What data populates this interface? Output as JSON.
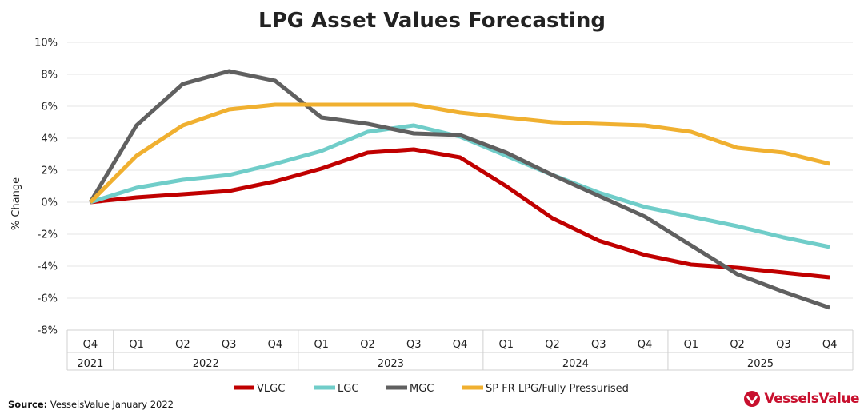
{
  "chart_data": {
    "type": "line",
    "title": "LPG Asset Values Forecasting",
    "ylabel": "% Change",
    "xlabel": "",
    "ylim": [
      -8,
      10
    ],
    "y_ticks": [
      -8,
      -6,
      -4,
      -2,
      0,
      2,
      4,
      6,
      8,
      10
    ],
    "y_tick_labels": [
      "-8%",
      "-6%",
      "-4%",
      "-2%",
      "0%",
      "2%",
      "4%",
      "6%",
      "8%",
      "10%"
    ],
    "categories": [
      "Q4 2021",
      "Q1 2022",
      "Q2 2022",
      "Q3 2022",
      "Q4 2022",
      "Q1 2023",
      "Q2 2023",
      "Q3 2023",
      "Q4 2023",
      "Q1 2024",
      "Q2 2024",
      "Q3 2024",
      "Q4 2024",
      "Q1 2025",
      "Q2 2025",
      "Q3 2025",
      "Q4 2025"
    ],
    "quarter_labels": [
      "Q4",
      "Q1",
      "Q2",
      "Q3",
      "Q4",
      "Q1",
      "Q2",
      "Q3",
      "Q4",
      "Q1",
      "Q2",
      "Q3",
      "Q4",
      "Q1",
      "Q2",
      "Q3",
      "Q4"
    ],
    "year_groups": [
      {
        "label": "2021",
        "start": 0,
        "end": 0
      },
      {
        "label": "2022",
        "start": 1,
        "end": 4
      },
      {
        "label": "2023",
        "start": 5,
        "end": 8
      },
      {
        "label": "2024",
        "start": 9,
        "end": 12
      },
      {
        "label": "2025",
        "start": 13,
        "end": 16
      }
    ],
    "series": [
      {
        "name": "VLGC",
        "color": "#c00000",
        "values": [
          0,
          0.3,
          0.5,
          0.7,
          1.3,
          2.1,
          3.1,
          3.3,
          2.8,
          1.0,
          -1.0,
          -2.4,
          -3.3,
          -3.9,
          -4.1,
          -4.4,
          -4.7
        ]
      },
      {
        "name": "LGC",
        "color": "#70cdc9",
        "values": [
          0,
          0.9,
          1.4,
          1.7,
          2.4,
          3.2,
          4.4,
          4.8,
          4.1,
          2.9,
          1.7,
          0.6,
          -0.3,
          -0.9,
          -1.5,
          -2.2,
          -2.8
        ]
      },
      {
        "name": "MGC",
        "color": "#606060",
        "values": [
          0,
          4.8,
          7.4,
          8.2,
          7.6,
          5.3,
          4.9,
          4.3,
          4.2,
          3.1,
          1.7,
          0.4,
          -0.9,
          -2.7,
          -4.5,
          -5.6,
          -6.6
        ]
      },
      {
        "name": "SP FR LPG/Fully Pressurised",
        "color": "#f0b030",
        "values": [
          0,
          2.9,
          4.8,
          5.8,
          6.1,
          6.1,
          6.1,
          6.1,
          5.6,
          5.3,
          5.0,
          4.9,
          4.8,
          4.4,
          3.4,
          3.1,
          2.4
        ]
      }
    ],
    "legend_position": "bottom",
    "grid": true
  },
  "footer": {
    "source_label": "Source:",
    "source_text": " VesselsValue January 2022",
    "brand_text": "VesselsValue",
    "brand_color": "#c8102e"
  }
}
